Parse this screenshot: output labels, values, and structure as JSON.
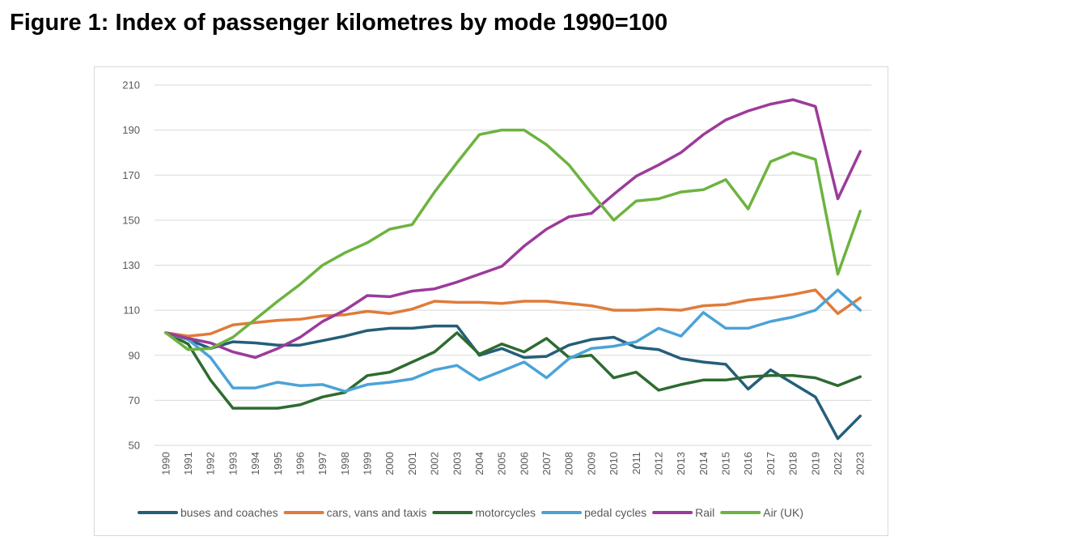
{
  "figure": {
    "title": "Figure 1: Index of passenger kilometres by mode 1990=100"
  },
  "chart_data": {
    "type": "line",
    "title": "Figure 1: Index of passenger kilometres by mode 1990=100",
    "xlabel": "",
    "ylabel": "",
    "ylim": [
      50,
      210
    ],
    "yticks": [
      50,
      70,
      90,
      110,
      130,
      150,
      170,
      190,
      210
    ],
    "grid": true,
    "legend_position": "bottom",
    "categories": [
      "1990",
      "1991",
      "1992",
      "1993",
      "1994",
      "1995",
      "1996",
      "1997",
      "1998",
      "1999",
      "2000",
      "2001",
      "2002",
      "2003",
      "2004",
      "2005",
      "2006",
      "2007",
      "2008",
      "2009",
      "2010",
      "2011",
      "2012",
      "2013",
      "2014",
      "2015",
      "2016",
      "2017",
      "2018",
      "2019",
      "2022",
      "2023"
    ],
    "series": [
      {
        "name": "buses and coaches",
        "color": "#255e79",
        "values": [
          100,
          97,
          93,
          96,
          95.5,
          94.5,
          94.5,
          96.5,
          98.5,
          101,
          102,
          102,
          103,
          103,
          90,
          93,
          89,
          89.5,
          94.5,
          97,
          98,
          93.5,
          92.5,
          88.5,
          87,
          86,
          75,
          83.5,
          77.5,
          71.5,
          53,
          63
        ]
      },
      {
        "name": "cars, vans and taxis",
        "color": "#e07b39",
        "values": [
          100,
          98.5,
          99.5,
          103.5,
          104.5,
          105.5,
          106,
          107.5,
          108,
          109.5,
          108.5,
          110.5,
          114,
          113.5,
          113.5,
          113,
          114,
          114,
          113,
          112,
          110,
          110,
          110.5,
          110,
          112,
          112.5,
          114.5,
          115.5,
          117,
          119,
          108.5,
          115.5
        ]
      },
      {
        "name": "motorcycles",
        "color": "#2e6b30",
        "values": [
          100,
          95,
          79,
          66.5,
          66.5,
          66.5,
          68,
          71.5,
          73.5,
          81,
          82.5,
          87,
          91.5,
          100,
          90.5,
          95,
          91.5,
          97.5,
          89,
          90,
          80,
          82.5,
          74.5,
          77,
          79,
          79,
          80.5,
          81,
          81,
          80,
          76.5,
          80.5
        ]
      },
      {
        "name": "pedal cycles",
        "color": "#4aa3d8",
        "values": [
          100,
          97,
          89,
          75.5,
          75.5,
          78,
          76.5,
          77,
          74,
          77,
          78,
          79.5,
          83.5,
          85.5,
          79,
          83,
          87,
          80,
          88.5,
          93,
          94,
          96,
          102,
          98.5,
          109,
          102,
          102,
          105,
          107,
          110,
          119,
          110
        ]
      },
      {
        "name": "Rail",
        "color": "#9b3b9b",
        "values": [
          100,
          97.5,
          95.5,
          91.5,
          89,
          93,
          98,
          105,
          110,
          116.5,
          116,
          118.5,
          119.5,
          122.5,
          126,
          129.5,
          138.5,
          146,
          151.5,
          153,
          161.5,
          169.5,
          174.5,
          180,
          188,
          194.5,
          198.5,
          201.5,
          203.5,
          200.5,
          159.5,
          180.5
        ]
      },
      {
        "name": "Air (UK)",
        "color": "#6db33f",
        "values": [
          100,
          92.5,
          93,
          98,
          106,
          114,
          121.5,
          130,
          135.5,
          140,
          146,
          148,
          162.5,
          175.5,
          188,
          190,
          190,
          183.5,
          174.5,
          162,
          150,
          158.5,
          159.5,
          162.5,
          163.5,
          168,
          155,
          176,
          180,
          177,
          126,
          154
        ]
      }
    ]
  }
}
